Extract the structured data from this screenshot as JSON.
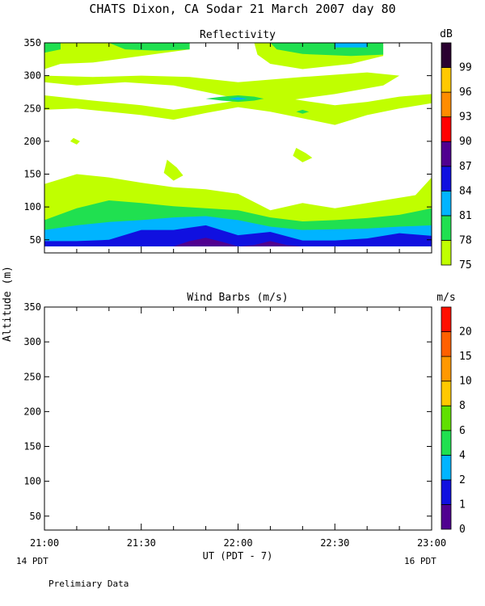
{
  "figure": {
    "title": "CHATS Dixon, CA  Sodar  21 March 2007  day  80",
    "ylabel": "Altitude (m)",
    "xlabel": "UT  (PDT - 7)",
    "x_tick_labels": [
      "21:00",
      "21:30",
      "22:00",
      "22:30",
      "23:00"
    ],
    "local_time_left": "14 PDT",
    "local_time_right": "16 PDT",
    "footer_note": "Prelimiary Data"
  },
  "chart_data": [
    {
      "type": "heatmap",
      "title": "Reflectivity",
      "ylabel": "Altitude (m)",
      "xlabel": "UT  (PDT - 7)",
      "xlim": [
        "21:00",
        "23:00"
      ],
      "ylim": [
        30,
        350
      ],
      "y_ticks": [
        50,
        100,
        150,
        200,
        250,
        300,
        350
      ],
      "colorbar": {
        "unit": "dB",
        "levels": [
          75,
          78,
          81,
          84,
          87,
          90,
          93,
          96,
          99
        ],
        "colors": [
          "#c0ff00",
          "#20e050",
          "#00b4ff",
          "#1010e0",
          "#500090",
          "#ff0000",
          "#ff8c00",
          "#ffc800",
          "#2a0030"
        ]
      },
      "layers": [
        {
          "level": 75,
          "color": "#c0ff00",
          "points": [
            [
              "21:00",
              40
            ],
            [
              "21:20",
              40
            ],
            [
              "21:40",
              40
            ],
            [
              "22:00",
              40
            ],
            [
              "22:20",
              40
            ],
            [
              "22:40",
              40
            ],
            [
              "23:00",
              40
            ],
            [
              "23:00",
              145
            ],
            [
              "22:55",
              118
            ],
            [
              "22:40",
              106
            ],
            [
              "22:30",
              98
            ],
            [
              "22:20",
              106
            ],
            [
              "22:10",
              95
            ],
            [
              "22:00",
              120
            ],
            [
              "21:50",
              127
            ],
            [
              "21:40",
              130
            ],
            [
              "21:30",
              137
            ],
            [
              "21:20",
              145
            ],
            [
              "21:10",
              150
            ],
            [
              "21:00",
              135
            ]
          ]
        },
        {
          "level": 78,
          "color": "#20e050",
          "points": [
            [
              "21:00",
              40
            ],
            [
              "21:20",
              40
            ],
            [
              "21:40",
              40
            ],
            [
              "22:00",
              40
            ],
            [
              "22:20",
              40
            ],
            [
              "22:40",
              40
            ],
            [
              "23:00",
              40
            ],
            [
              "23:00",
              98
            ],
            [
              "22:50",
              88
            ],
            [
              "22:40",
              83
            ],
            [
              "22:30",
              80
            ],
            [
              "22:20",
              78
            ],
            [
              "22:10",
              84
            ],
            [
              "22:00",
              95
            ],
            [
              "21:50",
              98
            ],
            [
              "21:40",
              101
            ],
            [
              "21:30",
              106
            ],
            [
              "21:20",
              110
            ],
            [
              "21:10",
              98
            ],
            [
              "21:00",
              80
            ]
          ]
        },
        {
          "level": 81,
          "color": "#00b4ff",
          "points": [
            [
              "21:00",
              40
            ],
            [
              "21:20",
              40
            ],
            [
              "21:40",
              40
            ],
            [
              "22:00",
              40
            ],
            [
              "22:20",
              40
            ],
            [
              "22:40",
              40
            ],
            [
              "23:00",
              40
            ],
            [
              "23:00",
              72
            ],
            [
              "22:50",
              70
            ],
            [
              "22:40",
              67
            ],
            [
              "22:20",
              65
            ],
            [
              "22:10",
              70
            ],
            [
              "22:00",
              80
            ],
            [
              "21:50",
              86
            ],
            [
              "21:40",
              84
            ],
            [
              "21:30",
              80
            ],
            [
              "21:20",
              77
            ],
            [
              "21:10",
              72
            ],
            [
              "21:00",
              65
            ]
          ]
        },
        {
          "level": 84,
          "color": "#1010e0",
          "points": [
            [
              "21:00",
              40
            ],
            [
              "21:20",
              40
            ],
            [
              "21:40",
              40
            ],
            [
              "22:00",
              40
            ],
            [
              "22:20",
              40
            ],
            [
              "22:40",
              40
            ],
            [
              "23:00",
              40
            ],
            [
              "23:00",
              56
            ],
            [
              "22:50",
              60
            ],
            [
              "22:40",
              52
            ],
            [
              "22:30",
              49
            ],
            [
              "22:20",
              49
            ],
            [
              "22:10",
              62
            ],
            [
              "22:00",
              57
            ],
            [
              "21:50",
              72
            ],
            [
              "21:40",
              65
            ],
            [
              "21:30",
              65
            ],
            [
              "21:20",
              50
            ],
            [
              "21:10",
              48
            ],
            [
              "21:00",
              48
            ]
          ]
        },
        {
          "level": 87,
          "color": "#500090",
          "points": [
            [
              "21:40",
              40
            ],
            [
              "21:45",
              48
            ],
            [
              "21:50",
              53
            ],
            [
              "21:55",
              47
            ],
            [
              "22:00",
              40
            ],
            [
              "22:05",
              42
            ],
            [
              "22:10",
              48
            ],
            [
              "22:15",
              42
            ],
            [
              "22:20",
              40
            ]
          ]
        }
      ],
      "patches": [
        {
          "level": 75,
          "color": "#c0ff00",
          "points": [
            [
              "21:00",
              350
            ],
            [
              "21:15",
              350
            ],
            [
              "21:30",
              350
            ],
            [
              "21:45",
              350
            ],
            [
              "21:45",
              340
            ],
            [
              "21:30",
              330
            ],
            [
              "21:15",
              320
            ],
            [
              "21:05",
              318
            ],
            [
              "21:00",
              310
            ]
          ]
        },
        {
          "level": 75,
          "color": "#c0ff00",
          "points": [
            [
              "22:05",
              350
            ],
            [
              "22:30",
              350
            ],
            [
              "22:45",
              350
            ],
            [
              "22:45",
              330
            ],
            [
              "22:35",
              318
            ],
            [
              "22:20",
              310
            ],
            [
              "22:10",
              318
            ],
            [
              "22:06",
              332
            ]
          ]
        },
        {
          "level": 75,
          "color": "#c0ff00",
          "points": [
            [
              "21:00",
              290
            ],
            [
              "21:10",
              285
            ],
            [
              "21:25",
              290
            ],
            [
              "21:40",
              285
            ],
            [
              "21:50",
              275
            ],
            [
              "22:00",
              265
            ],
            [
              "22:15",
              262
            ],
            [
              "22:30",
              272
            ],
            [
              "22:45",
              285
            ],
            [
              "22:50",
              300
            ],
            [
              "22:40",
              305
            ],
            [
              "22:20",
              298
            ],
            [
              "22:00",
              290
            ],
            [
              "21:45",
              298
            ],
            [
              "21:30",
              300
            ],
            [
              "21:15",
              298
            ],
            [
              "21:00",
              300
            ]
          ]
        },
        {
          "level": 75,
          "color": "#c0ff00",
          "points": [
            [
              "21:00",
              270
            ],
            [
              "21:15",
              262
            ],
            [
              "21:30",
              255
            ],
            [
              "21:40",
              248
            ],
            [
              "21:50",
              255
            ],
            [
              "22:00",
              262
            ],
            [
              "22:10",
              270
            ],
            [
              "22:20",
              262
            ],
            [
              "22:30",
              255
            ],
            [
              "22:40",
              260
            ],
            [
              "22:50",
              268
            ],
            [
              "23:00",
              272
            ],
            [
              "23:00",
              258
            ],
            [
              "22:50",
              250
            ],
            [
              "22:40",
              240
            ],
            [
              "22:30",
              225
            ],
            [
              "22:20",
              235
            ],
            [
              "22:10",
              245
            ],
            [
              "22:00",
              252
            ],
            [
              "21:50",
              243
            ],
            [
              "21:40",
              233
            ],
            [
              "21:30",
              240
            ],
            [
              "21:20",
              245
            ],
            [
              "21:10",
              250
            ],
            [
              "21:00",
              248
            ]
          ]
        },
        {
          "level": 75,
          "color": "#c0ff00",
          "points": [
            [
              "21:09",
              205
            ],
            [
              "21:11",
              200
            ],
            [
              "21:10",
              195
            ],
            [
              "21:08",
              200
            ]
          ]
        },
        {
          "level": 75,
          "color": "#c0ff00",
          "points": [
            [
              "22:18",
              190
            ],
            [
              "22:21",
              182
            ],
            [
              "22:23",
              175
            ],
            [
              "22:20",
              168
            ],
            [
              "22:17",
              178
            ]
          ]
        },
        {
          "level": 75,
          "color": "#c0ff00",
          "points": [
            [
              "21:38",
              172
            ],
            [
              "21:41",
              160
            ],
            [
              "21:43",
              148
            ],
            [
              "21:40",
              140
            ],
            [
              "21:37",
              152
            ]
          ]
        },
        {
          "level": 78,
          "color": "#20e050",
          "points": [
            [
              "21:00",
              350
            ],
            [
              "21:05",
              350
            ],
            [
              "21:05",
              340
            ],
            [
              "21:00",
              335
            ]
          ]
        },
        {
          "level": 78,
          "color": "#20e050",
          "points": [
            [
              "21:20",
              350
            ],
            [
              "21:45",
              350
            ],
            [
              "21:45",
              340
            ],
            [
              "21:35",
              338
            ],
            [
              "21:25",
              340
            ]
          ]
        },
        {
          "level": 78,
          "color": "#20e050",
          "points": [
            [
              "22:10",
              350
            ],
            [
              "22:30",
              350
            ],
            [
              "22:45",
              350
            ],
            [
              "22:45",
              332
            ],
            [
              "22:35",
              330
            ],
            [
              "22:20",
              333
            ],
            [
              "22:12",
              340
            ]
          ]
        },
        {
          "level": 78,
          "color": "#20e050",
          "points": [
            [
              "21:50",
              265
            ],
            [
              "21:55",
              262
            ],
            [
              "22:00",
              260
            ],
            [
              "22:05",
              262
            ],
            [
              "22:08",
              265
            ],
            [
              "22:05",
              268
            ],
            [
              "22:00",
              270
            ],
            [
              "21:55",
              268
            ]
          ]
        },
        {
          "level": 78,
          "color": "#20e050",
          "points": [
            [
              "22:18",
              245
            ],
            [
              "22:20",
              242
            ],
            [
              "22:22",
              245
            ],
            [
              "22:20",
              248
            ]
          ]
        },
        {
          "level": 81,
          "color": "#00b4ff",
          "points": [
            [
              "22:30",
              350
            ],
            [
              "22:40",
              350
            ],
            [
              "22:40",
              343
            ],
            [
              "22:30",
              343
            ]
          ]
        },
        {
          "level": 81,
          "color": "#00b4ff",
          "points": [
            [
              "21:57",
              265
            ],
            [
              "22:00",
              263
            ],
            [
              "22:03",
              265
            ],
            [
              "22:00",
              267
            ]
          ]
        }
      ]
    },
    {
      "type": "scatter",
      "title": "Wind Barbs (m/s)",
      "ylabel": "Altitude (m)",
      "xlabel": "UT  (PDT - 7)",
      "xlim": [
        "21:00",
        "23:00"
      ],
      "ylim": [
        30,
        350
      ],
      "y_ticks": [
        50,
        100,
        150,
        200,
        250,
        300,
        350
      ],
      "colorbar": {
        "unit": "m/s",
        "levels": [
          0,
          1,
          2,
          4,
          6,
          8,
          10,
          15,
          20
        ],
        "colors": [
          "#500090",
          "#1010e0",
          "#00b4ff",
          "#20e050",
          "#60e000",
          "#ffc800",
          "#ff9800",
          "#ff6000",
          "#ff1000"
        ]
      },
      "points": []
    }
  ]
}
